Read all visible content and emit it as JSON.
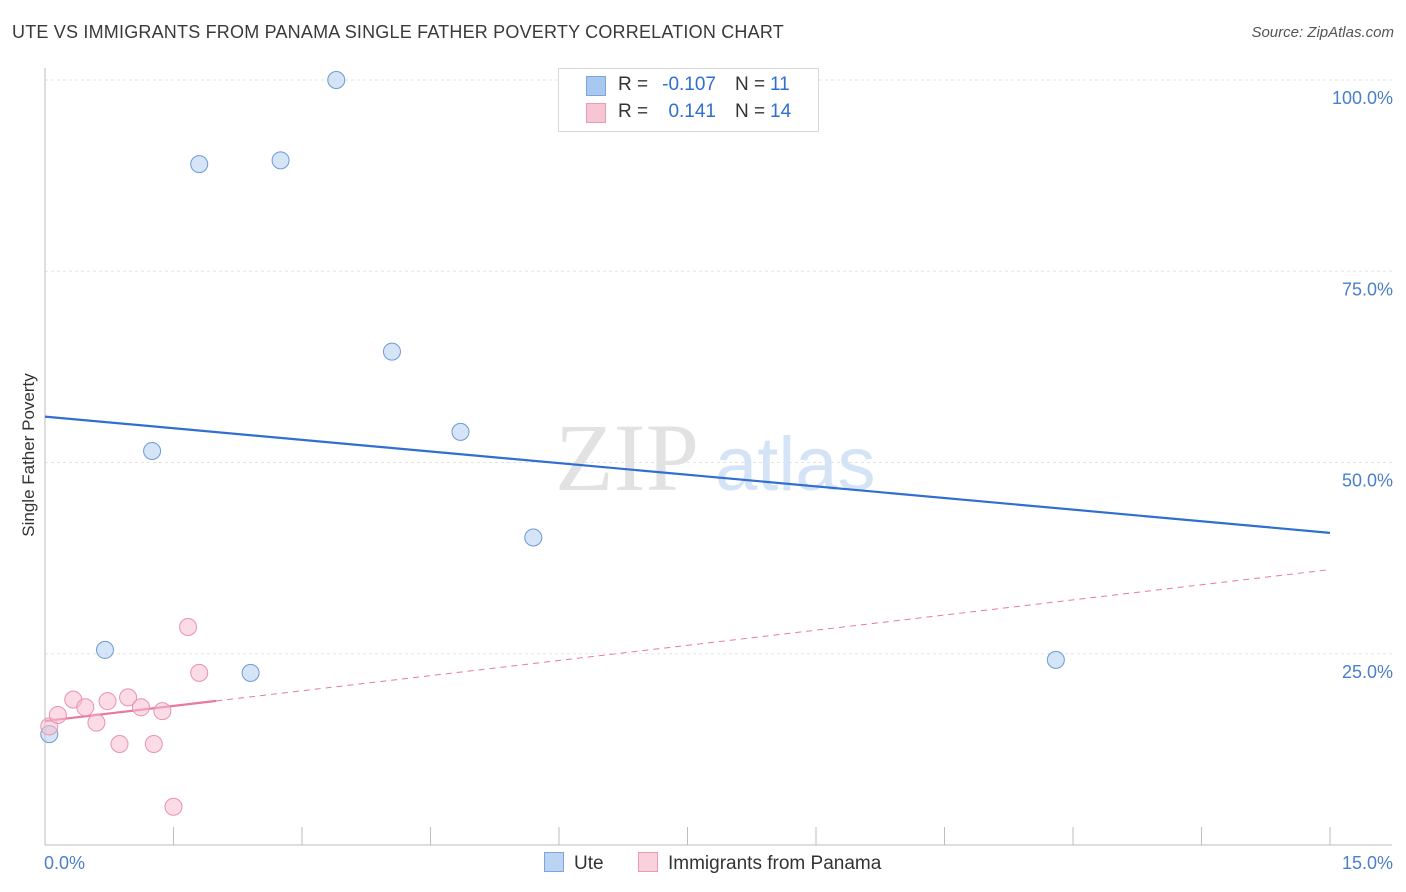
{
  "title": "UTE VS IMMIGRANTS FROM PANAMA SINGLE FATHER POVERTY CORRELATION CHART",
  "source": "Source: ZipAtlas.com",
  "watermark": {
    "zip": "ZIP",
    "atlas": "atlas"
  },
  "legend": {
    "rows": [
      {
        "r_label": "R =",
        "r_value": "-0.107",
        "n_label": "N =",
        "n_value": "11",
        "color": "#a9c8f0",
        "border": "#7aa6dc"
      },
      {
        "r_label": "R =",
        "r_value": "0.141",
        "n_label": "N =",
        "n_value": "14",
        "color": "#f7c6d5",
        "border": "#eb9ab3"
      }
    ]
  },
  "bottom_legend": [
    {
      "label": "Ute",
      "color": "#bcd4f3",
      "border": "#7aa6dc"
    },
    {
      "label": "Immigrants from Panama",
      "color": "#f9d0dc",
      "border": "#eb9ab3"
    }
  ],
  "chart_data": {
    "type": "scatter",
    "title": "UTE VS IMMIGRANTS FROM PANAMA SINGLE FATHER POVERTY CORRELATION CHART",
    "xlabel": "",
    "ylabel": "Single Father Poverty",
    "xlim": [
      0,
      15
    ],
    "ylim": [
      0,
      100
    ],
    "x_tick_labels": [
      "0.0%",
      "15.0%"
    ],
    "y_ticks": [
      25,
      50,
      75,
      100
    ],
    "y_tick_labels": [
      "25.0%",
      "50.0%",
      "75.0%",
      "100.0%"
    ],
    "grid": true,
    "series": [
      {
        "name": "Ute",
        "color": "#2f6fcf",
        "points": [
          {
            "x": 0.05,
            "y": 14.5
          },
          {
            "x": 0.7,
            "y": 25.5
          },
          {
            "x": 1.25,
            "y": 51.5
          },
          {
            "x": 1.8,
            "y": 89.0
          },
          {
            "x": 2.4,
            "y": 22.5
          },
          {
            "x": 2.75,
            "y": 89.5
          },
          {
            "x": 3.4,
            "y": 100.0
          },
          {
            "x": 4.05,
            "y": 64.5
          },
          {
            "x": 4.85,
            "y": 54.0
          },
          {
            "x": 5.7,
            "y": 40.2
          },
          {
            "x": 11.8,
            "y": 24.2
          }
        ],
        "trend": {
          "x": [
            0,
            15
          ],
          "y": [
            56.0,
            40.8
          ],
          "style": "solid"
        }
      },
      {
        "name": "Immigrants from Panama",
        "color": "#e87a9c",
        "points": [
          {
            "x": 0.05,
            "y": 15.5
          },
          {
            "x": 0.15,
            "y": 17.0
          },
          {
            "x": 0.33,
            "y": 19.0
          },
          {
            "x": 0.47,
            "y": 18.0
          },
          {
            "x": 0.6,
            "y": 16.0
          },
          {
            "x": 0.73,
            "y": 18.8
          },
          {
            "x": 0.87,
            "y": 13.2
          },
          {
            "x": 0.97,
            "y": 19.3
          },
          {
            "x": 1.12,
            "y": 18.0
          },
          {
            "x": 1.27,
            "y": 13.2
          },
          {
            "x": 1.37,
            "y": 17.5
          },
          {
            "x": 1.5,
            "y": 5.0
          },
          {
            "x": 1.67,
            "y": 28.5
          },
          {
            "x": 1.8,
            "y": 22.5
          }
        ],
        "trend": {
          "x": [
            0,
            15
          ],
          "y": [
            16.2,
            36.0
          ],
          "style": "dashed",
          "solid_until_x": 2.0
        }
      }
    ]
  }
}
